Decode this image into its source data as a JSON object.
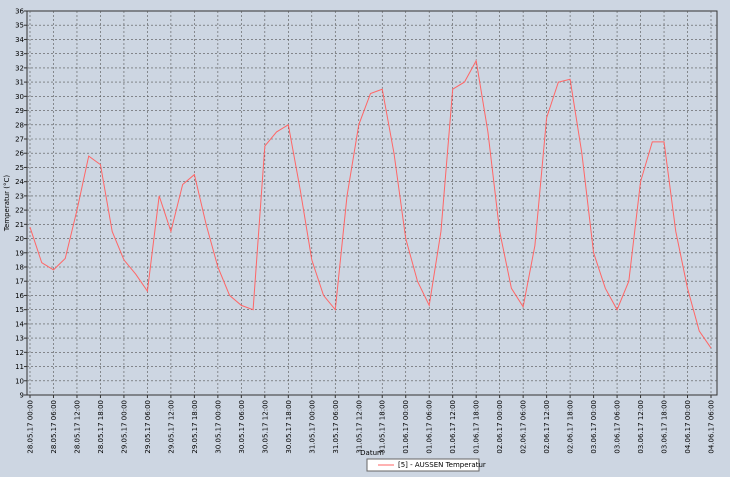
{
  "chart_data": {
    "type": "line",
    "x_label": "Datum",
    "y_label": "Temperatur (°C)",
    "xlim": [
      "28.05.17 00:00",
      "04.06.17 06:00"
    ],
    "xticks": [
      "28.05.17 00:00",
      "28.05.17 06:00",
      "28.05.17 12:00",
      "28.05.17 18:00",
      "29.05.17 00:00",
      "29.05.17 06:00",
      "29.05.17 12:00",
      "29.05.17 18:00",
      "30.05.17 00:00",
      "30.05.17 06:00",
      "30.05.17 12:00",
      "30.05.17 18:00",
      "31.05.17 00:00",
      "31.05.17 06:00",
      "31.05.17 12:00",
      "31.05.17 18:00",
      "01.06.17 00:00",
      "01.06.17 06:00",
      "01.06.17 12:00",
      "01.06.17 18:00",
      "02.06.17 00:00",
      "02.06.17 06:00",
      "02.06.17 12:00",
      "02.06.17 18:00",
      "03.06.17 00:00",
      "03.06.17 06:00",
      "03.06.17 12:00",
      "03.06.17 18:00",
      "04.06.17 00:00",
      "04.06.17 06:00"
    ],
    "ylim": [
      9,
      36
    ],
    "yticks": [
      9,
      10,
      11,
      12,
      13,
      14,
      15,
      16,
      17,
      18,
      19,
      20,
      21,
      22,
      23,
      24,
      25,
      26,
      27,
      28,
      29,
      30,
      31,
      32,
      33,
      34,
      35,
      36
    ],
    "grid": true,
    "legend": "bottom",
    "x": [
      "28.05.17 00:00",
      "28.05.17 03:00",
      "28.05.17 06:00",
      "28.05.17 09:00",
      "28.05.17 12:00",
      "28.05.17 15:00",
      "28.05.17 18:00",
      "28.05.17 21:00",
      "29.05.17 00:00",
      "29.05.17 03:00",
      "29.05.17 06:00",
      "29.05.17 09:00",
      "29.05.17 12:00",
      "29.05.17 15:00",
      "29.05.17 18:00",
      "29.05.17 21:00",
      "30.05.17 00:00",
      "30.05.17 03:00",
      "30.05.17 06:00",
      "30.05.17 09:00",
      "30.05.17 12:00",
      "30.05.17 15:00",
      "30.05.17 18:00",
      "30.05.17 21:00",
      "31.05.17 00:00",
      "31.05.17 03:00",
      "31.05.17 06:00",
      "31.05.17 09:00",
      "31.05.17 12:00",
      "31.05.17 15:00",
      "31.05.17 18:00",
      "31.05.17 21:00",
      "01.06.17 00:00",
      "01.06.17 03:00",
      "01.06.17 06:00",
      "01.06.17 09:00",
      "01.06.17 12:00",
      "01.06.17 15:00",
      "01.06.17 18:00",
      "01.06.17 21:00",
      "02.06.17 00:00",
      "02.06.17 03:00",
      "02.06.17 06:00",
      "02.06.17 09:00",
      "02.06.17 12:00",
      "02.06.17 15:00",
      "02.06.17 18:00",
      "02.06.17 21:00",
      "03.06.17 00:00",
      "03.06.17 03:00",
      "03.06.17 06:00",
      "03.06.17 09:00",
      "03.06.17 12:00",
      "03.06.17 15:00",
      "03.06.17 18:00",
      "03.06.17 21:00",
      "04.06.17 00:00",
      "04.06.17 03:00",
      "04.06.17 06:00"
    ],
    "series": [
      {
        "name": "[5] - AUSSEN Temperatur",
        "color": "#ff6666",
        "values": [
          20.8,
          18.3,
          17.8,
          18.6,
          22,
          25.8,
          25.2,
          20.5,
          18.5,
          17.5,
          16.3,
          23,
          20.5,
          23.8,
          24.5,
          21,
          18,
          16,
          15.3,
          15,
          26.5,
          27.5,
          28,
          23.5,
          18.5,
          16,
          15,
          23,
          28,
          30.2,
          30.5,
          26,
          20,
          17,
          15.3,
          20.5,
          30.5,
          31,
          32.5,
          27.5,
          20.5,
          16.5,
          15.2,
          19.5,
          28.5,
          31,
          31.2,
          26,
          19,
          16.5,
          15,
          17,
          24,
          26.8,
          26.8,
          20.5,
          16.5,
          13.5,
          12.3
        ]
      }
    ]
  }
}
